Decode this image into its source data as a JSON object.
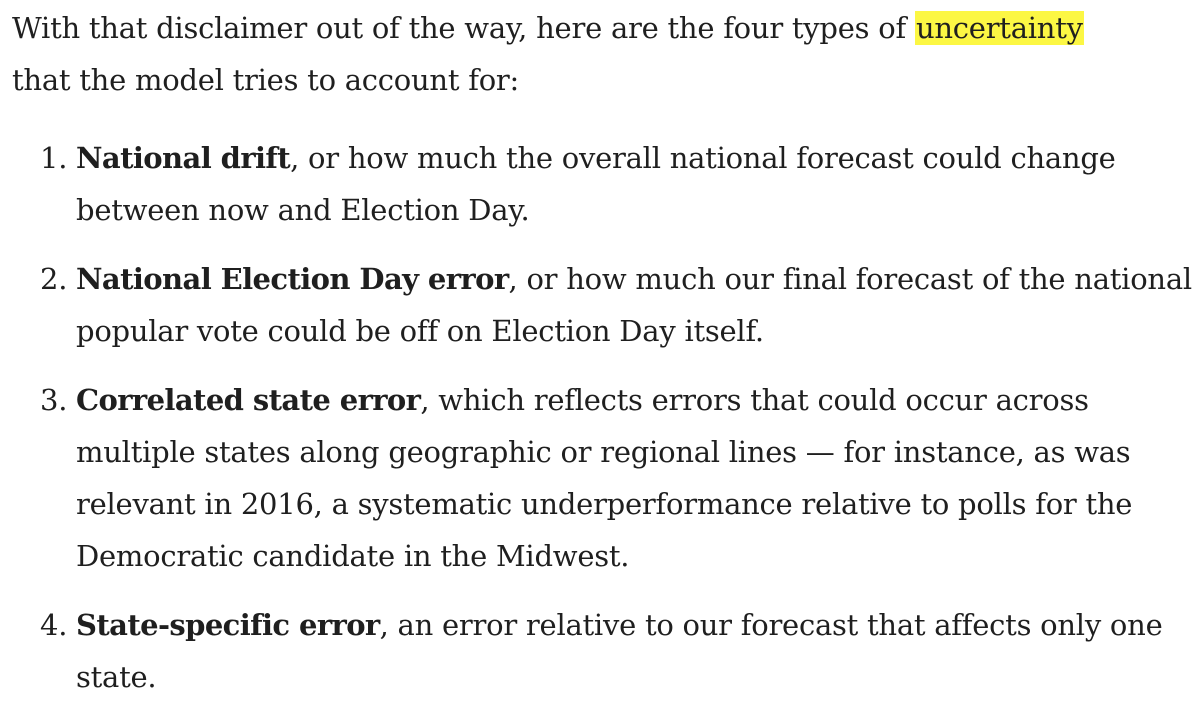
{
  "intro": {
    "before": "With that disclaimer out of the way, here are the four types of ",
    "highlight": "uncertainty",
    "after": " that the model tries to account for:"
  },
  "items": [
    {
      "number": "1.",
      "term": "National drift",
      "text": ", or how much the overall national forecast could change between now and Election Day."
    },
    {
      "number": "2.",
      "term": "National Election Day error",
      "text": ", or how much our final forecast of the national popular vote could be off on Election Day itself."
    },
    {
      "number": "3.",
      "term": "Correlated state error",
      "text": ", which reflects errors that could occur across multiple states along geographic or regional lines — for instance, as was relevant in 2016, a systematic underperformance relative to polls for the Democratic candidate in the Midwest."
    },
    {
      "number": "4.",
      "term": "State-specific error",
      "text": ", an error relative to our forecast that affects only one state."
    }
  ],
  "colors": {
    "text": "#1f1f1f",
    "highlight": "#fcf744",
    "background": "#ffffff"
  }
}
